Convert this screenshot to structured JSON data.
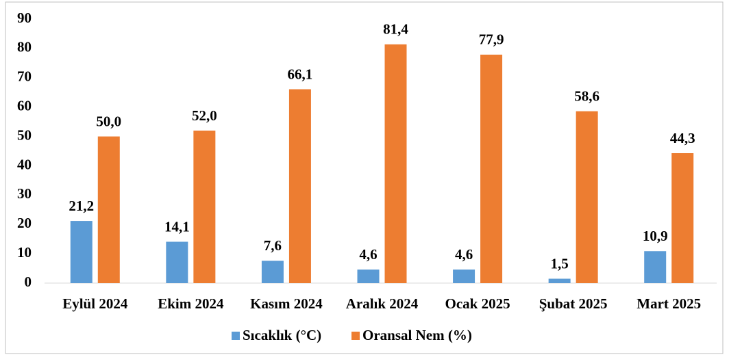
{
  "chart_data": {
    "type": "bar",
    "categories": [
      "Eylül 2024",
      "Ekim 2024",
      "Kasım 2024",
      "Aralık 2024",
      "Ocak 2025",
      "Şubat 2025",
      "Mart 2025"
    ],
    "series": [
      {
        "name": "Sıcaklık (°C)",
        "color": "#5b9bd5",
        "values": [
          21.2,
          14.1,
          7.6,
          4.6,
          4.6,
          1.5,
          10.9
        ],
        "value_labels": [
          "21,2",
          "14,1",
          "7,6",
          "4,6",
          "4,6",
          "1,5",
          "10,9"
        ]
      },
      {
        "name": "Oransal Nem (%)",
        "color": "#ed7d31",
        "values": [
          50.0,
          52.0,
          66.1,
          81.4,
          77.9,
          58.6,
          44.3
        ],
        "value_labels": [
          "50,0",
          "52,0",
          "66,1",
          "81,4",
          "77,9",
          "58,6",
          "44,3"
        ]
      }
    ],
    "ylim": [
      0,
      90
    ],
    "yticks": [
      0,
      10,
      20,
      30,
      40,
      50,
      60,
      70,
      80,
      90
    ],
    "grid": false,
    "legend": "bottom"
  }
}
